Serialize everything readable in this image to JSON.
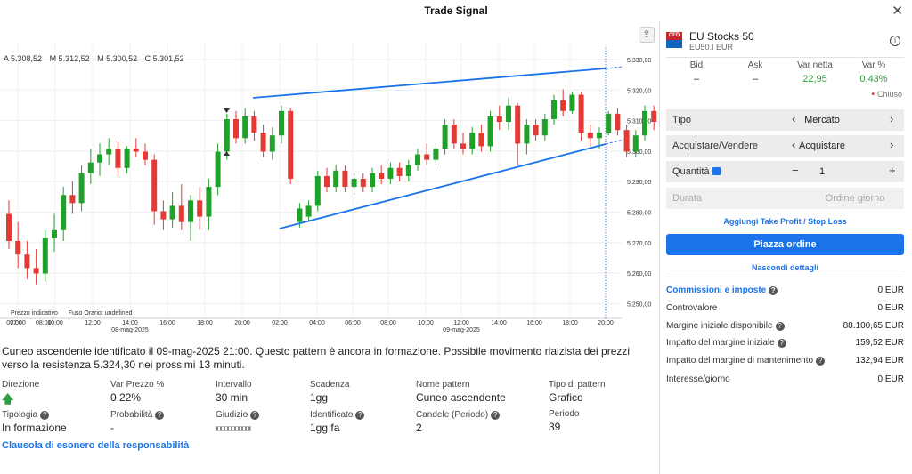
{
  "window": {
    "title": "Trade Signal",
    "close_icon": "close-icon"
  },
  "chart_data": {
    "type": "candlestick",
    "ohlc": {
      "open": "A 5.308,52",
      "high": "M 5.312,52",
      "low": "M 5.300,52",
      "close": "C 5.301,52"
    },
    "y_ticks": [
      "5.330,00",
      "5.320,00",
      "5.310,00",
      "5.300,00",
      "5.290,00",
      "5.280,00",
      "5.270,00",
      "5.260,00",
      "5.250,00"
    ],
    "ylim": [
      5245,
      5335
    ],
    "x_ticks": [
      "07:00",
      "08:00",
      "10:00",
      "12:00",
      "14:00",
      "16:00",
      "18:00",
      "20:00",
      "02:00",
      "04:00",
      "06:00",
      "08:00",
      "10:00",
      "12:00",
      "14:00",
      "16:00",
      "18:00",
      "20:00"
    ],
    "date_labels": [
      "08-mag-2025",
      "09-mag-2025"
    ],
    "notes": [
      "Prezzo indicativo",
      "Fuso Orario: undefined"
    ],
    "candles": [
      [
        5278,
        5283,
        5265,
        5268
      ],
      [
        5268,
        5275,
        5258,
        5263
      ],
      [
        5263,
        5268,
        5254,
        5258
      ],
      [
        5258,
        5265,
        5252,
        5256
      ],
      [
        5256,
        5272,
        5253,
        5269
      ],
      [
        5269,
        5278,
        5264,
        5272
      ],
      [
        5272,
        5288,
        5268,
        5285
      ],
      [
        5285,
        5290,
        5278,
        5282
      ],
      [
        5282,
        5296,
        5279,
        5293
      ],
      [
        5293,
        5302,
        5289,
        5297
      ],
      [
        5297,
        5304,
        5292,
        5300
      ],
      [
        5300,
        5306,
        5296,
        5302
      ],
      [
        5302,
        5305,
        5292,
        5295
      ],
      [
        5295,
        5303,
        5293,
        5302
      ],
      [
        5302,
        5306,
        5299,
        5301
      ],
      [
        5301,
        5304,
        5296,
        5298
      ],
      [
        5298,
        5300,
        5274,
        5279
      ],
      [
        5279,
        5283,
        5272,
        5276
      ],
      [
        5276,
        5286,
        5273,
        5281
      ],
      [
        5281,
        5289,
        5272,
        5275
      ],
      [
        5275,
        5285,
        5268,
        5283
      ],
      [
        5283,
        5288,
        5272,
        5277
      ],
      [
        5277,
        5291,
        5272,
        5288
      ],
      [
        5288,
        5304,
        5285,
        5301
      ],
      [
        5301,
        5315,
        5298,
        5313
      ],
      [
        5313,
        5316,
        5304,
        5306
      ],
      [
        5306,
        5317,
        5304,
        5314
      ],
      [
        5314,
        5316,
        5305,
        5308
      ],
      [
        5308,
        5311,
        5299,
        5301
      ],
      [
        5301,
        5310,
        5298,
        5307
      ],
      [
        5307,
        5318,
        5304,
        5316
      ],
      [
        5316,
        5317,
        5289,
        5291
      ],
      [
        5275,
        5282,
        5273,
        5280
      ],
      [
        5277,
        5283,
        5275,
        5281
      ],
      [
        5281,
        5294,
        5279,
        5292
      ],
      [
        5292,
        5295,
        5286,
        5288
      ],
      [
        5288,
        5296,
        5286,
        5294
      ],
      [
        5294,
        5296,
        5286,
        5288
      ],
      [
        5288,
        5293,
        5285,
        5291
      ],
      [
        5291,
        5293,
        5286,
        5288
      ],
      [
        5288,
        5295,
        5286,
        5293
      ],
      [
        5293,
        5296,
        5289,
        5291
      ],
      [
        5291,
        5297,
        5289,
        5295
      ],
      [
        5295,
        5297,
        5290,
        5292
      ],
      [
        5292,
        5298,
        5290,
        5296
      ],
      [
        5296,
        5302,
        5294,
        5300
      ],
      [
        5300,
        5304,
        5296,
        5298
      ],
      [
        5298,
        5304,
        5296,
        5302
      ],
      [
        5302,
        5313,
        5300,
        5311
      ],
      [
        5311,
        5313,
        5302,
        5304
      ],
      [
        5304,
        5308,
        5300,
        5302
      ],
      [
        5302,
        5310,
        5300,
        5308
      ],
      [
        5308,
        5311,
        5301,
        5303
      ],
      [
        5303,
        5316,
        5301,
        5314
      ],
      [
        5314,
        5318,
        5309,
        5312
      ],
      [
        5312,
        5321,
        5309,
        5318
      ],
      [
        5318,
        5319,
        5296,
        5304
      ],
      [
        5304,
        5313,
        5300,
        5311
      ],
      [
        5311,
        5313,
        5305,
        5307
      ],
      [
        5307,
        5315,
        5305,
        5313
      ],
      [
        5313,
        5322,
        5311,
        5320
      ],
      [
        5320,
        5324,
        5314,
        5316
      ],
      [
        5316,
        5323,
        5315,
        5322
      ],
      [
        5322,
        5323,
        5305,
        5308
      ],
      [
        5308,
        5311,
        5303,
        5306
      ],
      [
        5306,
        5310,
        5302,
        5308
      ],
      [
        5308,
        5316,
        5307,
        5315
      ],
      [
        5315,
        5317,
        5307,
        5309
      ],
      [
        5309,
        5311,
        5299,
        5301
      ],
      [
        5301,
        5309,
        5299,
        5307
      ],
      [
        5307,
        5318,
        5305,
        5316
      ],
      [
        5316,
        5318,
        5309,
        5312
      ],
      [
        5312,
        5318,
        5309,
        5316
      ],
      [
        5316,
        5319,
        5311,
        5314
      ]
    ]
  },
  "description": "Cuneo ascendente identificato il 09-mag-2025 21:00. Questo pattern è ancora in formazione. Possibile movimento rialzista dei prezzi verso la resistenza 5.324,30 nei prossimi 13 minuti.",
  "details": [
    {
      "label": "Direzione",
      "value": "",
      "icon": "arrow-up-icon"
    },
    {
      "label": "Var Prezzo %",
      "value": "0,22%"
    },
    {
      "label": "Intervallo",
      "value": "30 min"
    },
    {
      "label": "Scadenza",
      "value": "1gg"
    },
    {
      "label": "Nome pattern",
      "value": "Cuneo ascendente"
    },
    {
      "label": "Tipo di pattern",
      "value": "Grafico"
    },
    {
      "label": "Tipologia",
      "value": "In formazione",
      "help": true
    },
    {
      "label": "Probabilità",
      "value": "-",
      "help": true
    },
    {
      "label": "Giudizio",
      "value": "",
      "help": true,
      "judge": true
    },
    {
      "label": "Identificato",
      "value": "1gg fa",
      "help": true
    },
    {
      "label": "Candele (Periodo)",
      "value": "2",
      "help": true
    },
    {
      "label": "Periodo",
      "value": "39"
    }
  ],
  "disclaimer": "Clausola di esonero della responsabilità",
  "instrument": {
    "badge": "CFD",
    "name": "EU Stocks 50",
    "code": "EU50.I EUR"
  },
  "quote": {
    "headers": [
      "Bid",
      "Ask",
      "Var netta",
      "Var %"
    ],
    "values": [
      "–",
      "–",
      "22,95",
      "0,43%"
    ],
    "status": "Chiuso"
  },
  "order": {
    "tipo": {
      "label": "Tipo",
      "value": "Mercato"
    },
    "side": {
      "label": "Acquistare/Vendere",
      "value": "Acquistare"
    },
    "qty": {
      "label": "Quantità",
      "value": "1",
      "minus": "−",
      "plus": "+"
    },
    "durata": {
      "label": "Durata",
      "value": "Ordine giorno"
    },
    "tpsl": "Aggiungi Take Profit / Stop Loss",
    "place": "Piazza ordine",
    "hide": "Nascondi dettagli"
  },
  "summary": [
    {
      "label": "Commissioni e imposte",
      "value": "0 EUR",
      "help": true,
      "highlight": true
    },
    {
      "label": "Controvalore",
      "value": "0 EUR"
    },
    {
      "label": "Margine iniziale disponibile",
      "value": "88.100,65 EUR",
      "help": true
    },
    {
      "label": "Impatto del margine iniziale",
      "value": "159,52 EUR",
      "help": true
    },
    {
      "label": "Impatto del margine di mantenimento",
      "value": "132,94 EUR",
      "help": true
    },
    {
      "label": "Interesse/giorno",
      "value": "0 EUR"
    }
  ]
}
